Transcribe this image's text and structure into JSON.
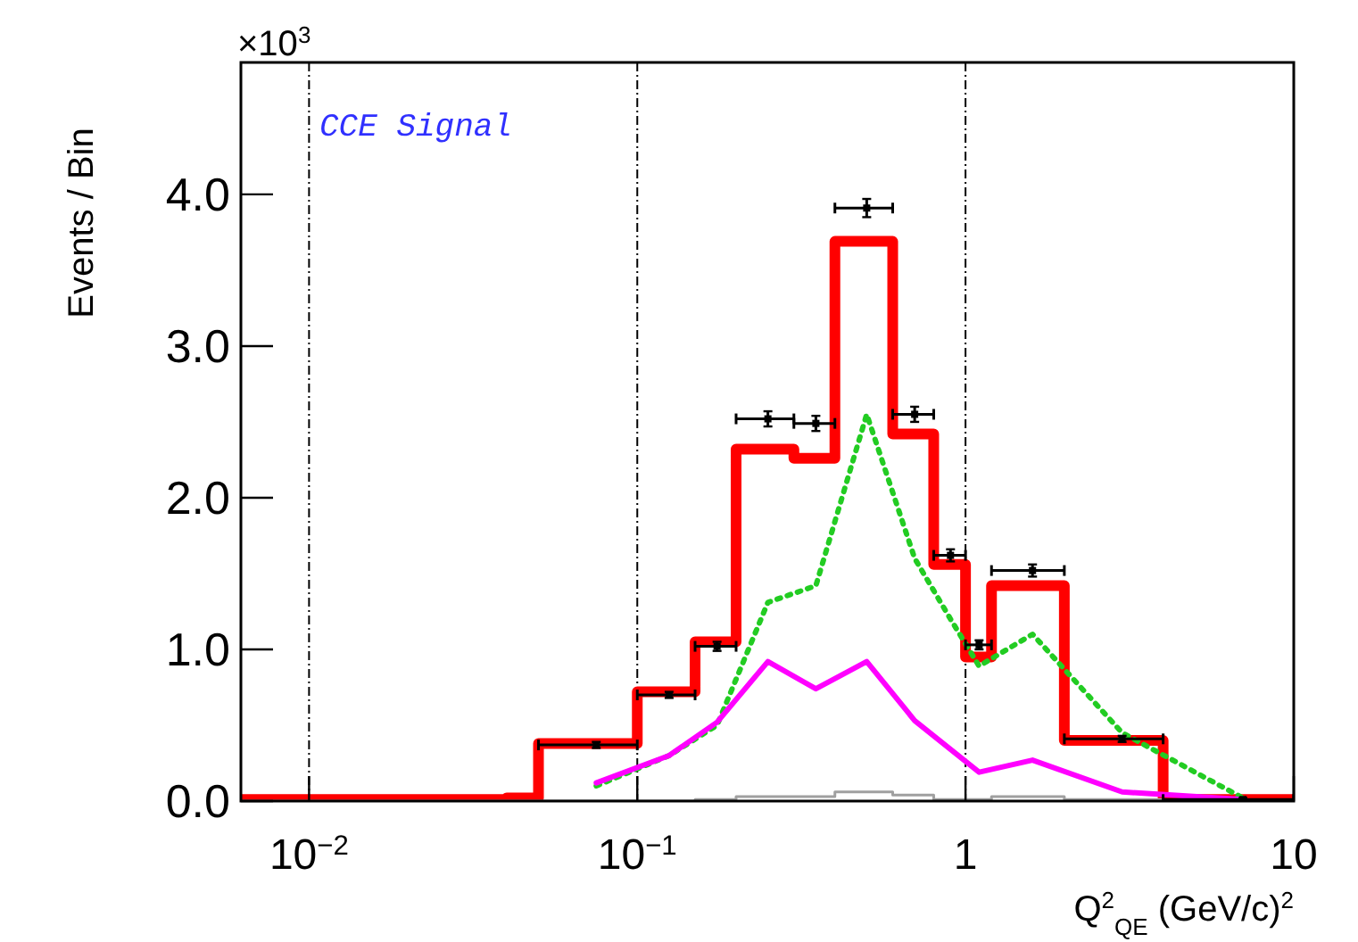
{
  "chart_data": {
    "type": "histogram",
    "xlabel": "Q$^{2}$$_{QE}$ (GeV/c)$^{2}$",
    "ylabel": "Events / Bin",
    "annotations": [
      "×10$^{3}$",
      "CCE Signal"
    ],
    "log": "x",
    "grid": false,
    "xlim": [
      0.0062,
      10
    ],
    "xticks": [
      {
        "value": 0.01,
        "label": "10$^{−2}$"
      },
      {
        "value": 0.1,
        "label": "10$^{−1}$"
      },
      1,
      10
    ],
    "ylim": [
      0,
      4.87
    ],
    "yticks": [
      {
        "value": 0,
        "label": "0.0"
      },
      {
        "value": 1,
        "label": "1.0"
      },
      {
        "value": 2,
        "label": "2.0"
      },
      {
        "value": 3,
        "label": "3.0"
      },
      {
        "value": 4,
        "label": "4.0"
      }
    ],
    "bins": [
      0.0062,
      0.02,
      0.03,
      0.04,
      0.05,
      0.1,
      0.15,
      0.2,
      0.3,
      0.4,
      0.6,
      0.8,
      1.0,
      1.2,
      2.0,
      4.0,
      10
    ],
    "ref_lines": [
      {
        "axis": "x",
        "value": 0.01,
        "line_style": "dashed",
        "color": "#000000"
      },
      {
        "axis": "x",
        "value": 0.1,
        "line_style": "dashed",
        "color": "#000000"
      },
      {
        "axis": "x",
        "value": 1,
        "line_style": "dashed",
        "color": "#000000"
      }
    ],
    "series": [
      {
        "color": "#ff0000",
        "values": [
          0.01,
          0.01,
          0.01,
          0.02,
          0.38,
          0.72,
          1.05,
          2.32,
          2.26,
          3.69,
          2.42,
          1.56,
          0.95,
          1.42,
          0.4,
          0.01
        ]
      },
      {
        "type": "histogram",
        "color": "#a0a0a0",
        "values": [
          0,
          0,
          0,
          0,
          0,
          0,
          0.01,
          0.03,
          0.03,
          0.06,
          0.04,
          0.01,
          0.01,
          0.03,
          0.01,
          0
        ]
      },
      {
        "type": "line",
        "color": "#22cc22",
        "line_style": "dotted",
        "marker": "none",
        "x": [
          0.075,
          0.125,
          0.175,
          0.25,
          0.35,
          0.5,
          0.7,
          0.9,
          1.1,
          1.6,
          3.0,
          7.0
        ],
        "values": [
          0.1,
          0.3,
          0.5,
          1.31,
          1.42,
          2.55,
          1.6,
          1.2,
          0.89,
          1.1,
          0.45,
          0.02
        ]
      },
      {
        "type": "line",
        "color": "#ff00ff",
        "line_style": "solid",
        "marker": "none",
        "x": [
          0.075,
          0.125,
          0.175,
          0.25,
          0.35,
          0.5,
          0.7,
          1.1,
          1.6,
          3.0,
          7.0
        ],
        "values": [
          0.12,
          0.3,
          0.52,
          0.92,
          0.74,
          0.92,
          0.53,
          0.19,
          0.27,
          0.06,
          0.01
        ]
      },
      {
        "type": "scatter",
        "color": "#000000",
        "marker": "square",
        "x": [
          0.075,
          0.125,
          0.175,
          0.25,
          0.35,
          0.5,
          0.7,
          0.9,
          1.1,
          1.6,
          3.0,
          7.0
        ],
        "values": [
          0.37,
          0.7,
          1.02,
          2.52,
          2.49,
          3.91,
          2.55,
          1.62,
          1.03,
          1.52,
          0.41,
          0.01
        ],
        "errors": [
          0.02,
          0.02,
          0.03,
          0.05,
          0.05,
          0.06,
          0.05,
          0.04,
          0.03,
          0.04,
          0.02,
          0.01
        ],
        "xerrors": [
          0.025,
          0.025,
          0.025,
          0.05,
          0.05,
          0.1,
          0.1,
          0.1,
          0.1,
          0.4,
          1.0,
          3.0
        ]
      }
    ]
  }
}
